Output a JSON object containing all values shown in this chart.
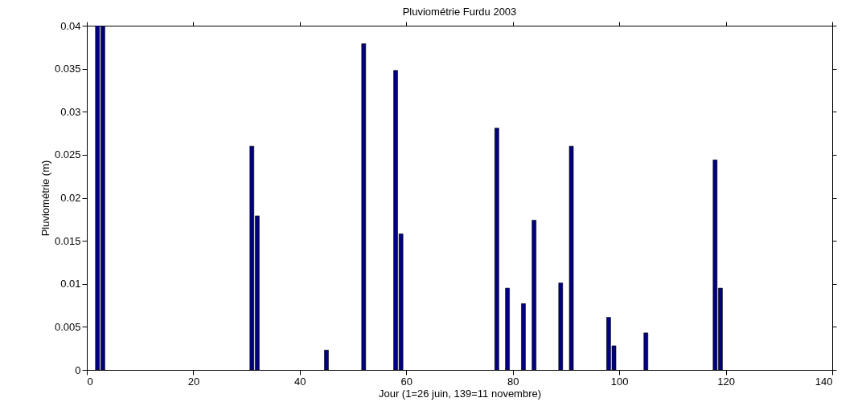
{
  "chart_data": {
    "type": "bar",
    "title": "Pluviométrie Furdu 2003",
    "xlabel": "Jour (1=26 juin, 139=11 novembre)",
    "ylabel": "Pluviométrie (m)",
    "x": [
      2,
      3,
      31,
      32,
      45,
      52,
      58,
      59,
      77,
      79,
      82,
      84,
      89,
      91,
      98,
      99,
      105,
      118,
      119
    ],
    "values": [
      0.04,
      0.04,
      0.026,
      0.0179,
      0.0023,
      0.0379,
      0.0348,
      0.0158,
      0.0281,
      0.0095,
      0.0077,
      0.0174,
      0.0101,
      0.026,
      0.0061,
      0.0028,
      0.0043,
      0.0244,
      0.0095
    ],
    "color": "#000080",
    "xlim": [
      0,
      140
    ],
    "xticks": [
      0,
      20,
      40,
      60,
      80,
      100,
      120,
      140
    ],
    "ylim": [
      0,
      0.04
    ],
    "yticks": [
      0,
      0.005,
      0.01,
      0.015,
      0.02,
      0.025,
      0.03,
      0.035,
      0.04
    ],
    "grid": false
  }
}
